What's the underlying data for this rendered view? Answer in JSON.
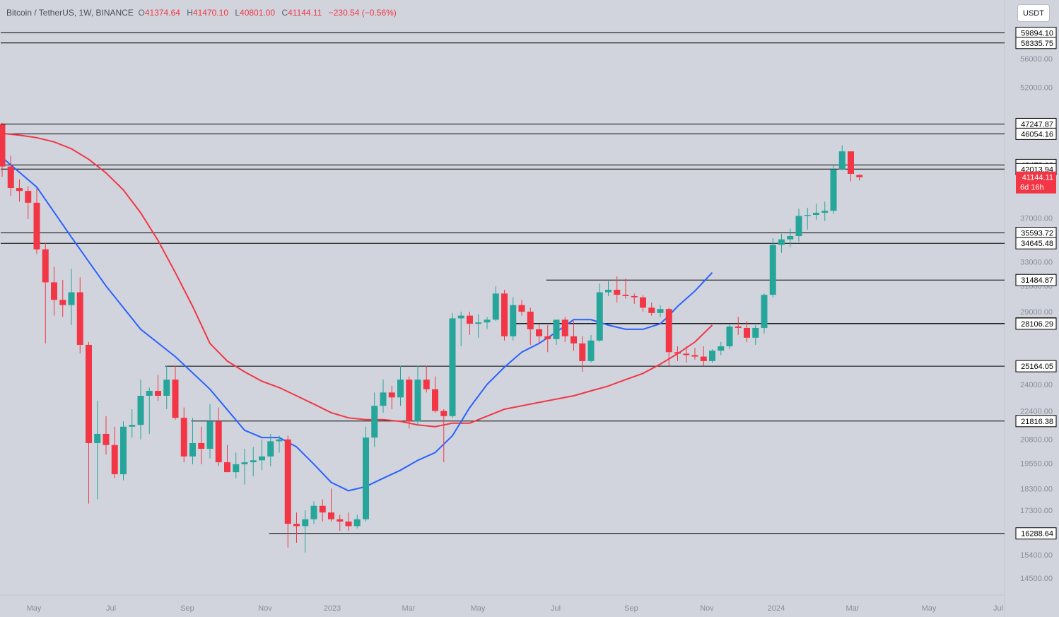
{
  "legend": {
    "symbol": "Bitcoin / TetherUS, 1W, BINANCE",
    "open_key": "O",
    "open": "41374.64",
    "high_key": "H",
    "high": "41470.10",
    "low_key": "L",
    "low": "40801.00",
    "close_key": "C",
    "close": "41144.11",
    "change": "−230.54 (−0.56%)"
  },
  "currency_button": "USDT",
  "colors": {
    "background": "#d1d4dc",
    "up": "#26a69a",
    "down": "#f23645",
    "ema_fast": "#2962ff",
    "ema_slow": "#f23645",
    "level_line": "#000000"
  },
  "chart_data": {
    "type": "candlestick",
    "symbol": "Bitcoin / TetherUS",
    "interval": "1W",
    "exchange": "BINANCE",
    "scale": "log",
    "ylim": [
      14000,
      62000
    ],
    "y_ticks": [
      "56000.00",
      "52000.00",
      "37000.00",
      "33000.00",
      "31000.00",
      "29000.00",
      "24000.00",
      "22400.00",
      "20800.00",
      "19550.00",
      "18300.00",
      "17300.00",
      "15400.00",
      "14500.00"
    ],
    "x_ticks": [
      "May",
      "Jul",
      "Sep",
      "Nov",
      "2023",
      "Mar",
      "May",
      "Jul",
      "Sep",
      "Nov",
      "2024",
      "Mar",
      "May",
      "Jul"
    ],
    "current_price": {
      "value": 41144.11,
      "label": "41144.11",
      "countdown": "6d 16h"
    },
    "levels": [
      {
        "value": 59894.1,
        "label": "59894.10",
        "start_week": 0
      },
      {
        "value": 58335.75,
        "label": "58335.75",
        "start_week": 0
      },
      {
        "value": 47247.87,
        "label": "47247.87",
        "start_week": 0
      },
      {
        "value": 46054.16,
        "label": "46054.16",
        "start_week": 0
      },
      {
        "value": 42473.06,
        "label": "42473.06",
        "start_week": 0
      },
      {
        "value": 42013.94,
        "label": "42013.94",
        "start_week": 0
      },
      {
        "value": 35593.72,
        "label": "35593.72",
        "start_week": 0
      },
      {
        "value": 34645.48,
        "label": "34645.48",
        "start_week": 0
      },
      {
        "value": 31484.87,
        "label": "31484.87",
        "start_week": 63
      },
      {
        "value": 28123.11,
        "label": "28123.11",
        "start_week": 59
      },
      {
        "value": 28106.29,
        "label": "28106.29",
        "start_week": 59
      },
      {
        "value": 25164.05,
        "label": "25164.05",
        "start_week": 19
      },
      {
        "value": 21816.38,
        "label": "21816.38",
        "start_week": 22
      },
      {
        "value": 16288.64,
        "label": "16288.64",
        "start_week": 31
      }
    ],
    "candles": [
      [
        47200,
        47400,
        41200,
        42300
      ],
      [
        42300,
        43500,
        39200,
        40000
      ],
      [
        40000,
        40900,
        38600,
        39700
      ],
      [
        39700,
        40200,
        36900,
        38500
      ],
      [
        38500,
        40000,
        33700,
        34100
      ],
      [
        34100,
        34700,
        26700,
        31300
      ],
      [
        31300,
        32600,
        28700,
        29900
      ],
      [
        29900,
        31500,
        28600,
        29500
      ],
      [
        29500,
        32400,
        28000,
        30500
      ],
      [
        30500,
        31700,
        26000,
        26600
      ],
      [
        26600,
        26800,
        17600,
        20600
      ],
      [
        20600,
        23000,
        17800,
        21100
      ],
      [
        21100,
        22100,
        20000,
        20500
      ],
      [
        20500,
        21500,
        18800,
        19000
      ],
      [
        19000,
        21800,
        18700,
        21500
      ],
      [
        21500,
        22500,
        20900,
        21600
      ],
      [
        21600,
        24300,
        20800,
        23300
      ],
      [
        23300,
        23800,
        21100,
        23600
      ],
      [
        23600,
        24600,
        23000,
        23300
      ],
      [
        23300,
        25200,
        22500,
        24300
      ],
      [
        24300,
        25200,
        21900,
        22000
      ],
      [
        22000,
        22600,
        19600,
        19900
      ],
      [
        19900,
        22000,
        19500,
        20600
      ],
      [
        20600,
        21500,
        19500,
        20300
      ],
      [
        20300,
        22800,
        19800,
        21800
      ],
      [
        21800,
        22600,
        19400,
        19600
      ],
      [
        19600,
        20500,
        19100,
        19100
      ],
      [
        19100,
        20100,
        18800,
        19500
      ],
      [
        19500,
        20300,
        18500,
        19600
      ],
      [
        19600,
        20400,
        18900,
        19700
      ],
      [
        19700,
        20800,
        19200,
        19900
      ],
      [
        19900,
        21100,
        19400,
        20700
      ],
      [
        20700,
        21000,
        20100,
        20800
      ],
      [
        20800,
        21000,
        15700,
        16700
      ],
      [
        16700,
        17200,
        15900,
        16600
      ],
      [
        16600,
        17300,
        15500,
        16900
      ],
      [
        16900,
        17700,
        16700,
        17500
      ],
      [
        17500,
        17800,
        16800,
        17200
      ],
      [
        17200,
        18300,
        16800,
        16900
      ],
      [
        16900,
        17100,
        16400,
        16800
      ],
      [
        16800,
        17200,
        16400,
        16600
      ],
      [
        16600,
        17100,
        16500,
        16900
      ],
      [
        16900,
        21500,
        16800,
        20900
      ],
      [
        20900,
        23500,
        20400,
        22700
      ],
      [
        22700,
        24300,
        22300,
        23500
      ],
      [
        23500,
        23900,
        22500,
        23200
      ],
      [
        23200,
        25200,
        22700,
        24300
      ],
      [
        24300,
        24500,
        21400,
        21800
      ],
      [
        21800,
        25200,
        21600,
        24300
      ],
      [
        24300,
        25200,
        23500,
        23700
      ],
      [
        23700,
        24500,
        22300,
        22400
      ],
      [
        22400,
        22500,
        19600,
        22100
      ],
      [
        22100,
        28900,
        22000,
        28500
      ],
      [
        28500,
        29000,
        26500,
        28700
      ],
      [
        28700,
        29000,
        27300,
        28100
      ],
      [
        28100,
        28800,
        27100,
        28200
      ],
      [
        28200,
        28600,
        27700,
        28400
      ],
      [
        28400,
        31000,
        28300,
        30400
      ],
      [
        30400,
        30700,
        26900,
        27200
      ],
      [
        27200,
        30100,
        26900,
        29500
      ],
      [
        29500,
        29900,
        28700,
        29000
      ],
      [
        29000,
        29300,
        26600,
        27700
      ],
      [
        27700,
        28100,
        26700,
        27200
      ],
      [
        27200,
        28000,
        26100,
        27000
      ],
      [
        27000,
        28400,
        26600,
        28400
      ],
      [
        28400,
        28600,
        26800,
        27200
      ],
      [
        27200,
        28300,
        26200,
        26700
      ],
      [
        26700,
        27200,
        24800,
        25500
      ],
      [
        25500,
        27300,
        25400,
        26900
      ],
      [
        26900,
        31200,
        26800,
        30500
      ],
      [
        30500,
        31400,
        30200,
        30700
      ],
      [
        30700,
        31800,
        29700,
        30300
      ],
      [
        30300,
        31600,
        30000,
        30200
      ],
      [
        30200,
        30400,
        29600,
        30100
      ],
      [
        30100,
        30300,
        29000,
        29300
      ],
      [
        29300,
        29700,
        28700,
        28900
      ],
      [
        28900,
        29500,
        28600,
        29200
      ],
      [
        29200,
        29300,
        25200,
        26100
      ],
      [
        26100,
        26500,
        25500,
        26000
      ],
      [
        26000,
        26500,
        25400,
        25900
      ],
      [
        25900,
        26400,
        25600,
        25800
      ],
      [
        25800,
        26500,
        25200,
        25500
      ],
      [
        25500,
        26300,
        25400,
        26200
      ],
      [
        26200,
        26800,
        25900,
        26500
      ],
      [
        26500,
        28100,
        26300,
        27900
      ],
      [
        27900,
        28600,
        27300,
        27800
      ],
      [
        27800,
        28300,
        26800,
        27100
      ],
      [
        27100,
        28000,
        26600,
        27800
      ],
      [
        27800,
        30400,
        27400,
        30300
      ],
      [
        30300,
        35100,
        30100,
        34500
      ],
      [
        34500,
        35500,
        33800,
        35000
      ],
      [
        35000,
        36000,
        34300,
        35300
      ],
      [
        35300,
        37900,
        34800,
        37200
      ],
      [
        37200,
        38000,
        35900,
        37300
      ],
      [
        37300,
        38400,
        36800,
        37500
      ],
      [
        37500,
        38600,
        36700,
        37700
      ],
      [
        37700,
        42400,
        37400,
        42000
      ],
      [
        42000,
        44700,
        41900,
        44000
      ],
      [
        44000,
        44000,
        40700,
        41500
      ],
      [
        41374.64,
        41470.1,
        40801.0,
        41144.11
      ]
    ],
    "ema_fast": [
      [
        0,
        43300
      ],
      [
        4,
        40100
      ],
      [
        8,
        35200
      ],
      [
        12,
        31000
      ],
      [
        16,
        27700
      ],
      [
        20,
        25800
      ],
      [
        24,
        23700
      ],
      [
        28,
        21300
      ],
      [
        30,
        20900
      ],
      [
        32,
        20900
      ],
      [
        34,
        20400
      ],
      [
        36,
        19500
      ],
      [
        38,
        18600
      ],
      [
        40,
        18200
      ],
      [
        42,
        18400
      ],
      [
        44,
        18800
      ],
      [
        46,
        19200
      ],
      [
        48,
        19700
      ],
      [
        50,
        20100
      ],
      [
        52,
        21000
      ],
      [
        54,
        22600
      ],
      [
        56,
        24000
      ],
      [
        58,
        25100
      ],
      [
        60,
        26100
      ],
      [
        62,
        26700
      ],
      [
        64,
        27500
      ],
      [
        66,
        28400
      ],
      [
        68,
        28400
      ],
      [
        70,
        28000
      ],
      [
        72,
        27700
      ],
      [
        74,
        27700
      ],
      [
        76,
        28100
      ],
      [
        77,
        28700
      ],
      [
        78,
        29400
      ],
      [
        80,
        30600
      ],
      [
        82,
        32100
      ]
    ],
    "ema_slow": [
      [
        0,
        46100
      ],
      [
        2,
        45900
      ],
      [
        4,
        45600
      ],
      [
        6,
        45100
      ],
      [
        8,
        44300
      ],
      [
        10,
        43100
      ],
      [
        12,
        41600
      ],
      [
        14,
        39800
      ],
      [
        16,
        37500
      ],
      [
        18,
        34900
      ],
      [
        20,
        32100
      ],
      [
        22,
        29400
      ],
      [
        24,
        26700
      ],
      [
        26,
        25500
      ],
      [
        28,
        24800
      ],
      [
        30,
        24200
      ],
      [
        32,
        23800
      ],
      [
        34,
        23300
      ],
      [
        36,
        22800
      ],
      [
        38,
        22300
      ],
      [
        40,
        22000
      ],
      [
        42,
        21900
      ],
      [
        44,
        21900
      ],
      [
        46,
        21800
      ],
      [
        48,
        21600
      ],
      [
        50,
        21500
      ],
      [
        52,
        21700
      ],
      [
        54,
        21700
      ],
      [
        56,
        22100
      ],
      [
        58,
        22500
      ],
      [
        60,
        22700
      ],
      [
        62,
        22900
      ],
      [
        64,
        23100
      ],
      [
        66,
        23300
      ],
      [
        68,
        23600
      ],
      [
        70,
        23900
      ],
      [
        72,
        24300
      ],
      [
        74,
        24700
      ],
      [
        76,
        25300
      ],
      [
        78,
        26000
      ],
      [
        80,
        26800
      ],
      [
        82,
        28000
      ]
    ]
  }
}
